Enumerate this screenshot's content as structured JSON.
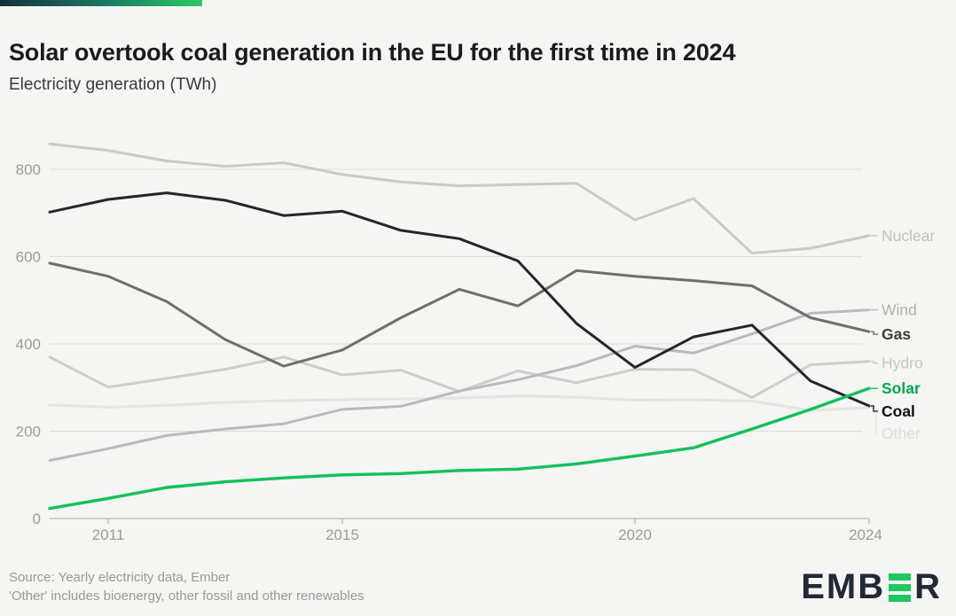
{
  "header": {
    "title": "Solar overtook coal generation in the EU for the first time in 2024",
    "subtitle": "Electricity generation (TWh)"
  },
  "footer": {
    "source_line": "Source: Yearly electricity data, Ember",
    "note_line": "'Other' includes bioenergy, other fossil and other renewables",
    "logo_name": "EMBER",
    "logo_prefix": "EMB",
    "logo_suffix": "R"
  },
  "colors": {
    "background": "#f5f5f3",
    "topbar_gradient": [
      "#16303f",
      "#177a63",
      "#2cc868"
    ],
    "gridline": "#dddddb",
    "axis": "#b9b9b7",
    "tick_label": "#9b9b99",
    "logo_green": "#1fc75f",
    "logo_dark": "#212836"
  },
  "chart_data": {
    "type": "line",
    "title": "Solar overtook coal generation in the EU for the first time in 2024",
    "xlabel": "",
    "ylabel": "Electricity generation (TWh)",
    "x": [
      2010,
      2011,
      2012,
      2013,
      2014,
      2015,
      2016,
      2017,
      2018,
      2019,
      2020,
      2021,
      2022,
      2023,
      2024
    ],
    "x_ticks": [
      2011,
      2015,
      2020,
      2024
    ],
    "y_ticks": [
      0,
      200,
      400,
      600,
      800
    ],
    "xlim": [
      2010,
      2024
    ],
    "ylim": [
      0,
      880
    ],
    "grid": "horizontal",
    "legend_position": "right-edge-line-labels",
    "series": [
      {
        "name": "Other",
        "color": "#e4e4e2",
        "label_color": "#dcdcda",
        "bold": false,
        "label_dy": 29,
        "values": [
          260,
          255,
          259,
          266,
          270,
          272,
          274,
          276,
          281,
          278,
          271,
          272,
          269,
          248,
          254
        ]
      },
      {
        "name": "Nuclear",
        "color": "#c9c9c7",
        "label_color": "#bfbfbd",
        "bold": false,
        "label_dy": 0,
        "values": [
          858,
          843,
          819,
          807,
          815,
          788,
          771,
          762,
          765,
          768,
          684,
          733,
          608,
          619,
          648
        ]
      },
      {
        "name": "Hydro",
        "color": "#cdcdcb",
        "label_color": "#c6c6c4",
        "bold": false,
        "label_dy": 2,
        "values": [
          370,
          301,
          321,
          342,
          370,
          329,
          340,
          291,
          338,
          311,
          342,
          341,
          277,
          352,
          360
        ]
      },
      {
        "name": "Wind",
        "color": "#bababa",
        "label_color": "#b0b0ae",
        "bold": false,
        "label_dy": 0,
        "values": [
          133,
          160,
          190,
          205,
          217,
          250,
          257,
          292,
          318,
          350,
          395,
          379,
          423,
          470,
          478
        ]
      },
      {
        "name": "Gas",
        "color": "#6f6f6d",
        "label_color": "#3f3f3d",
        "bold": true,
        "label_dy": 3,
        "values": [
          585,
          555,
          497,
          410,
          349,
          386,
          460,
          525,
          487,
          568,
          555,
          545,
          533,
          460,
          428
        ]
      },
      {
        "name": "Coal",
        "color": "#262626",
        "label_color": "#121212",
        "bold": true,
        "label_dy": 6,
        "values": [
          702,
          731,
          746,
          729,
          694,
          704,
          660,
          641,
          590,
          447,
          346,
          416,
          443,
          315,
          258
        ]
      },
      {
        "name": "Solar",
        "color": "#12c05a",
        "label_color": "#00a84f",
        "bold": true,
        "label_dy": 0,
        "values": [
          23,
          46,
          71,
          84,
          93,
          100,
          103,
          110,
          113,
          125,
          143,
          162,
          205,
          250,
          298
        ]
      }
    ]
  }
}
